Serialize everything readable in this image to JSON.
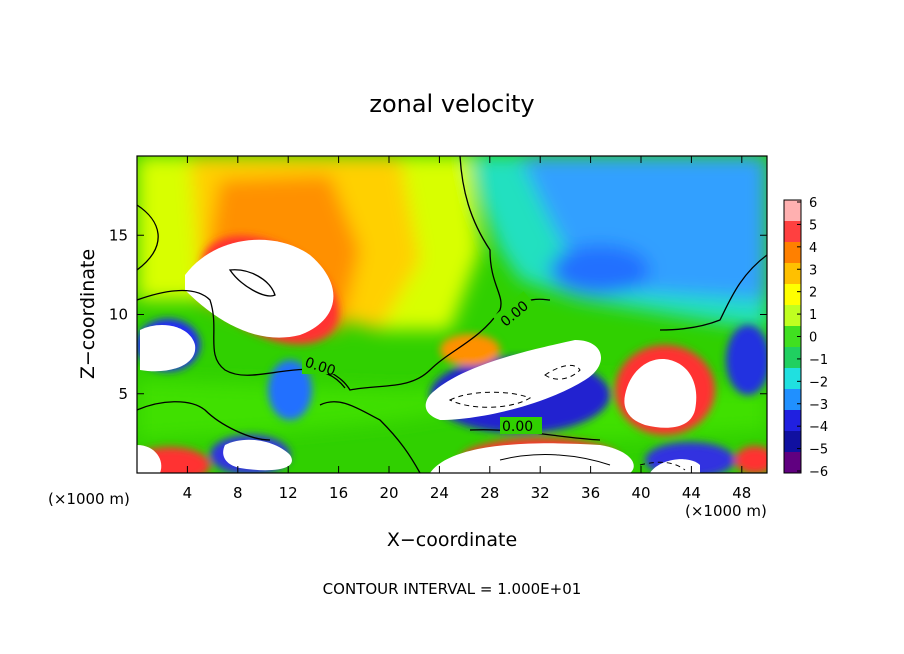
{
  "chart_data": {
    "type": "heatmap",
    "title": "zonal velocity",
    "xlabel": "X−coordinate",
    "ylabel": "Z−coordinate",
    "x_unit_label_left": "(×1000 m)",
    "x_unit_label_right": "(×1000 m)",
    "xlim": [
      0,
      50
    ],
    "ylim": [
      0,
      20
    ],
    "x_ticks": [
      4,
      8,
      12,
      16,
      20,
      24,
      28,
      32,
      36,
      40,
      44,
      48
    ],
    "y_ticks": [
      5,
      10,
      15
    ],
    "colorbar": {
      "min": -6,
      "max": 6,
      "ticks": [
        "6",
        "5",
        "4",
        "3",
        "2",
        "1",
        "0",
        "−1",
        "−2",
        "−3",
        "−4",
        "−5",
        "−6"
      ],
      "colors": [
        "#ffb0b0",
        "#ff4040",
        "#ff8000",
        "#ffc000",
        "#ffff00",
        "#c0ff20",
        "#40e020",
        "#20d060",
        "#20e0e0",
        "#2090ff",
        "#2020e0",
        "#1010a0",
        "#600080"
      ]
    },
    "contour_labels": [
      "0.00",
      "0.00",
      "0.00"
    ],
    "footer": "CONTOUR INTERVAL = 1.000E+01",
    "grid": false
  }
}
